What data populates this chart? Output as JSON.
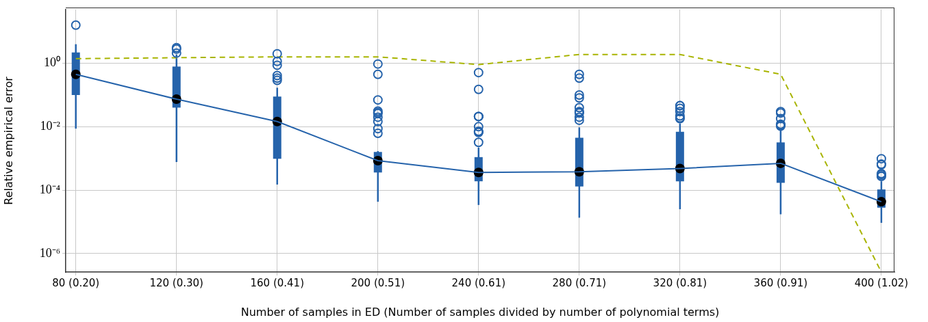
{
  "chart_data": {
    "type": "box",
    "xlabel": "Number of samples in ED (Number of samples divided by number of polynomial terms)",
    "ylabel": "Relative empirical error",
    "categories": [
      "80 (0.20)",
      "120 (0.30)",
      "160 (0.41)",
      "200 (0.51)",
      "240 (0.61)",
      "280 (0.71)",
      "320 (0.81)",
      "360 (0.91)",
      "400 (1.02)"
    ],
    "log": "y",
    "ylim": [
      2.6e-07,
      50
    ],
    "yticks": [
      {
        "value": 1e-06,
        "label": "10⁻⁶"
      },
      {
        "value": 0.0001,
        "label": "10⁻⁴"
      },
      {
        "value": 0.01,
        "label": "10⁻²"
      },
      {
        "value": 1,
        "label": "10⁰"
      }
    ],
    "grid": true,
    "legend": false,
    "series": [
      {
        "color": "#2563ab",
        "boxes": [
          {
            "low": 0.0087,
            "q1": 0.1,
            "median": 0.45,
            "q3": 2.2,
            "high": 4,
            "outliers": [
              16
            ]
          },
          {
            "low": 0.00077,
            "q1": 0.04,
            "median": 0.074,
            "q3": 0.79,
            "high": 1.9,
            "outliers": [
              2.1,
              3.1,
              2.8
            ]
          },
          {
            "low": 0.00015,
            "q1": 0.00098,
            "median": 0.0146,
            "q3": 0.089,
            "high": 0.17,
            "outliers": [
              1.15,
              0.87,
              2.0,
              0.41,
              0.29,
              0.34
            ]
          },
          {
            "low": 4.3e-05,
            "q1": 0.00036,
            "median": 0.00085,
            "q3": 0.0016,
            "high": 0.0017,
            "outliers": [
              0.95,
              0.45,
              0.07,
              0.031,
              0.026,
              0.02,
              0.0146,
              0.028,
              0.0087,
              0.0062
            ]
          },
          {
            "low": 3.4e-05,
            "q1": 0.00019,
            "median": 0.00036,
            "q3": 0.0011,
            "high": 0.0022,
            "outliers": [
              0.51,
              0.15,
              0.021,
              0.021,
              0.021,
              0.01,
              0.0072,
              0.0066,
              0.0068,
              0.0032
            ]
          },
          {
            "low": 1.35e-05,
            "q1": 0.00013,
            "median": 0.00038,
            "q3": 0.0045,
            "high": 0.0095,
            "outliers": [
              0.45,
              0.34,
              0.1,
              0.081,
              0.04,
              0.03,
              0.028,
              0.02,
              0.016,
              0.027
            ]
          },
          {
            "low": 2.5e-05,
            "q1": 0.00019,
            "median": 0.00048,
            "q3": 0.0069,
            "high": 0.0126,
            "outliers": [
              0.046,
              0.038,
              0.046,
              0.03,
              0.022,
              0.018,
              0.019
            ]
          },
          {
            "low": 1.73e-05,
            "q1": 0.00017,
            "median": 0.0007,
            "q3": 0.0032,
            "high": 0.0079,
            "outliers": [
              0.03,
              0.027,
              0.018,
              0.0115,
              0.0109,
              0.012,
              0.0104
            ]
          },
          {
            "low": 9.3e-06,
            "q1": 2.8e-05,
            "median": 4.3e-05,
            "q3": 0.000105,
            "high": 0.00019,
            "outliers": [
              0.00066,
              0.00063,
              0.00098,
              0.00027,
              0.00028,
              0.00031,
              0.00033
            ]
          }
        ]
      },
      {
        "type": "line",
        "color": "#2563ab",
        "line_style": "solid",
        "marker": "none",
        "values": [
          0.45,
          0.074,
          0.0146,
          0.00085,
          0.00036,
          0.00038,
          0.00048,
          0.0007,
          4.3e-05
        ]
      },
      {
        "type": "line",
        "color": "#a8b400",
        "line_style": "dashed",
        "marker": "none",
        "values": [
          1.4,
          1.5,
          1.6,
          1.6,
          0.91,
          1.9,
          1.9,
          0.45,
          2.6e-07
        ]
      }
    ]
  }
}
